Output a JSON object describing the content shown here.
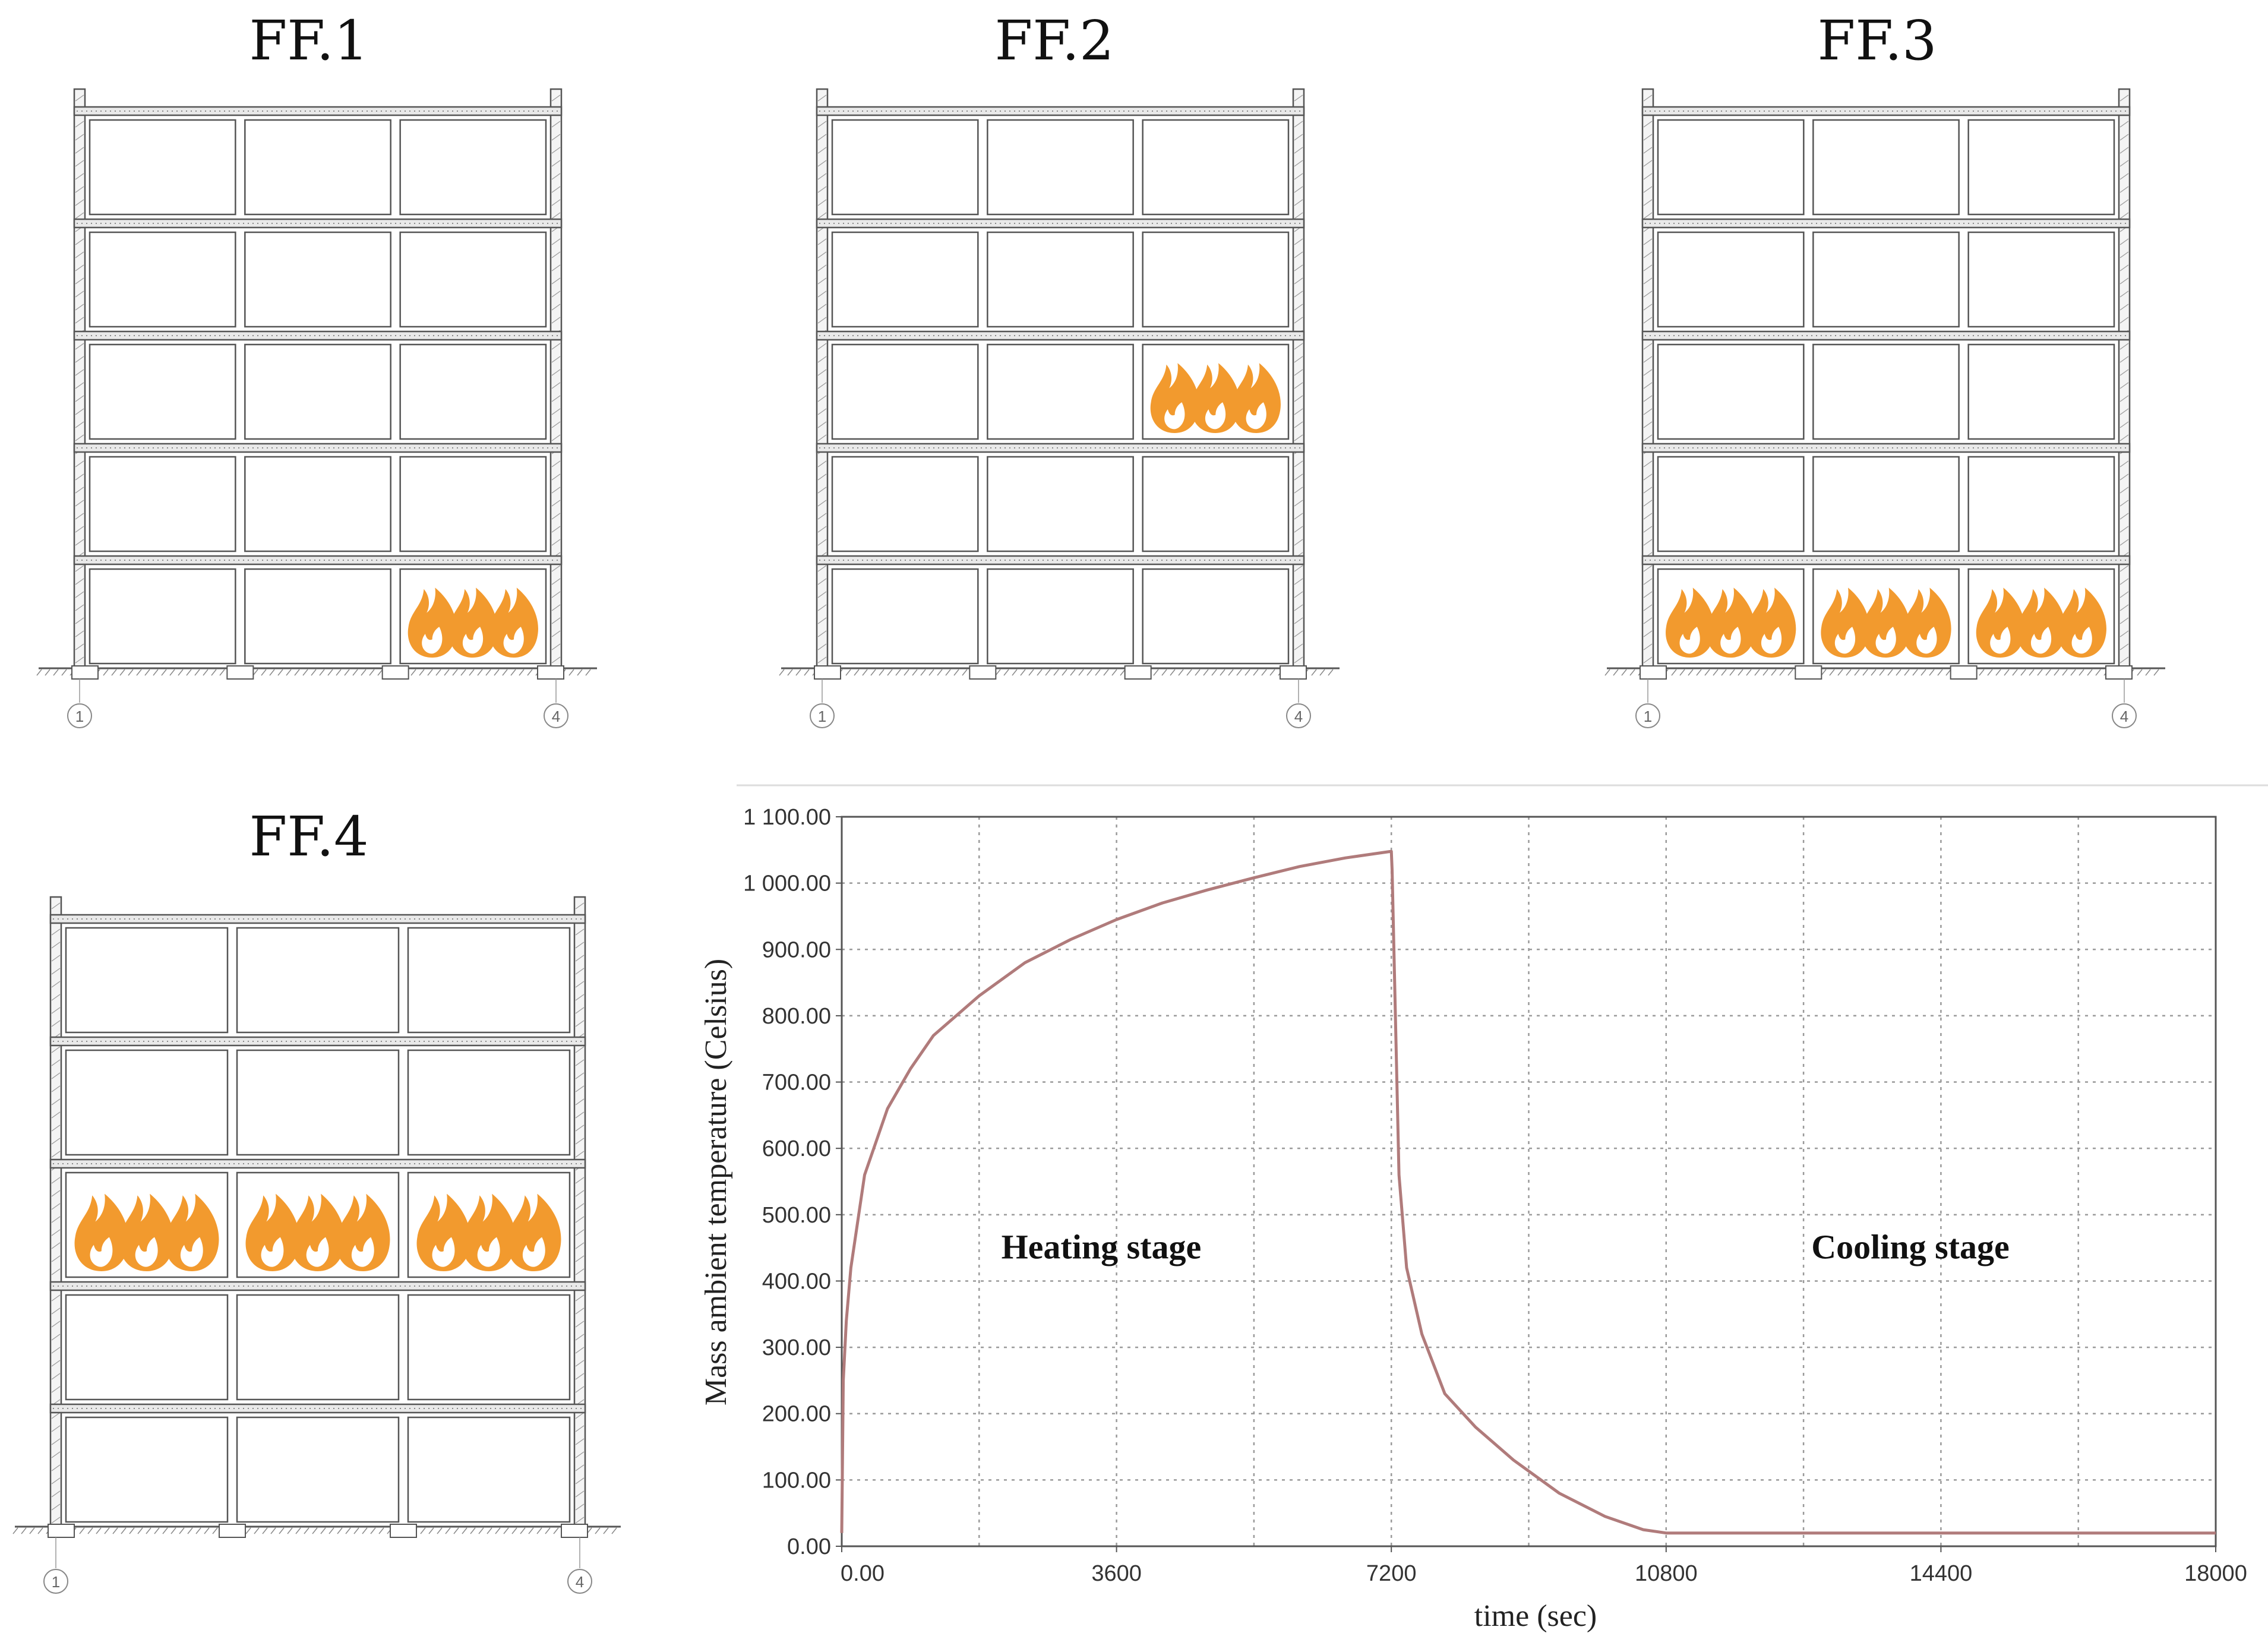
{
  "figure": {
    "panels": [
      {
        "title": "FF.1",
        "fire_rooms": [
          [
            0,
            2
          ]
        ],
        "grid_labels": [
          "1",
          "4"
        ]
      },
      {
        "title": "FF.2",
        "fire_rooms": [
          [
            2,
            2
          ]
        ],
        "grid_labels": [
          "1",
          "4"
        ]
      },
      {
        "title": "FF.3",
        "fire_rooms": [
          [
            0,
            0
          ],
          [
            0,
            1
          ],
          [
            0,
            2
          ]
        ],
        "grid_labels": [
          "1",
          "4"
        ]
      },
      {
        "title": "FF.4",
        "fire_rooms": [
          [
            2,
            0
          ],
          [
            2,
            1
          ],
          [
            2,
            2
          ]
        ],
        "grid_labels": [
          "1",
          "4"
        ]
      }
    ],
    "building": {
      "stories": 5,
      "bays": 3
    },
    "colors": {
      "fire": "#f29a2e",
      "structure": "#555555",
      "curve": "#b07b7b",
      "grid": "#9a9a9a"
    },
    "icon": "fire-icon"
  },
  "chart_data": {
    "type": "line",
    "title": "",
    "xlabel": "time (sec)",
    "ylabel": "Mass ambient temperature (Celsius)",
    "xlim": [
      0,
      18000
    ],
    "ylim": [
      0,
      1100
    ],
    "x_ticks": [
      0,
      3600,
      7200,
      10800,
      14400,
      18000
    ],
    "x_tick_labels": [
      "0.00",
      "3600",
      "7200",
      "10800",
      "14400",
      "18000"
    ],
    "y_ticks": [
      0,
      100,
      200,
      300,
      400,
      500,
      600,
      700,
      800,
      900,
      1000,
      1100
    ],
    "y_tick_labels": [
      "0.00",
      "100.00",
      "200.00",
      "300.00",
      "400.00",
      "500.00",
      "600.00",
      "700.00",
      "800.00",
      "900.00",
      "1 000.00",
      "1 100.00"
    ],
    "grid": true,
    "series": [
      {
        "name": "Mass ambient temperature",
        "x": [
          0,
          20,
          60,
          120,
          300,
          600,
          900,
          1200,
          1800,
          2400,
          3000,
          3600,
          4200,
          4800,
          5400,
          6000,
          6600,
          7200,
          7210,
          7300,
          7400,
          7600,
          7900,
          8300,
          8800,
          9400,
          10000,
          10500,
          10800,
          12000,
          14400,
          16000,
          18000
        ],
        "y": [
          20,
          250,
          340,
          420,
          560,
          660,
          720,
          770,
          830,
          880,
          915,
          945,
          970,
          990,
          1008,
          1025,
          1038,
          1048,
          1020,
          560,
          420,
          320,
          230,
          180,
          130,
          80,
          45,
          25,
          20,
          20,
          20,
          20,
          20
        ]
      }
    ],
    "annotations": [
      {
        "text": "Heating stage",
        "x": 3400,
        "y": 450
      },
      {
        "text": "Cooling stage",
        "x": 14000,
        "y": 450
      }
    ]
  }
}
